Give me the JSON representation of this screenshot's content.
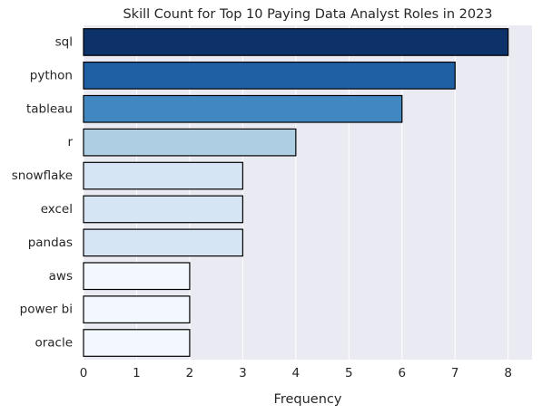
{
  "chart_data": {
    "type": "bar",
    "orientation": "horizontal",
    "title": "Skill Count for Top 10 Paying Data Analyst Roles in 2023",
    "xlabel": "Frequency",
    "ylabel": "",
    "categories": [
      "sql",
      "python",
      "tableau",
      "r",
      "snowflake",
      "excel",
      "pandas",
      "aws",
      "power bi",
      "oracle"
    ],
    "values": [
      8,
      7,
      6,
      4,
      3,
      3,
      3,
      2,
      2,
      2
    ],
    "xlim": [
      0,
      8.45
    ],
    "xticks": [
      0,
      1,
      2,
      3,
      4,
      5,
      6,
      7,
      8
    ],
    "grid": true,
    "palette": "Blues",
    "colors": [
      "#0d3169",
      "#1f60a5",
      "#4188c1",
      "#aecee4",
      "#d5e5f3",
      "#d5e5f3",
      "#d5e5f3",
      "#f3f8fe",
      "#f3f8fe",
      "#f3f8fe"
    ],
    "background_color": "#eaeaf2",
    "bar_edge_color": "#000000"
  }
}
